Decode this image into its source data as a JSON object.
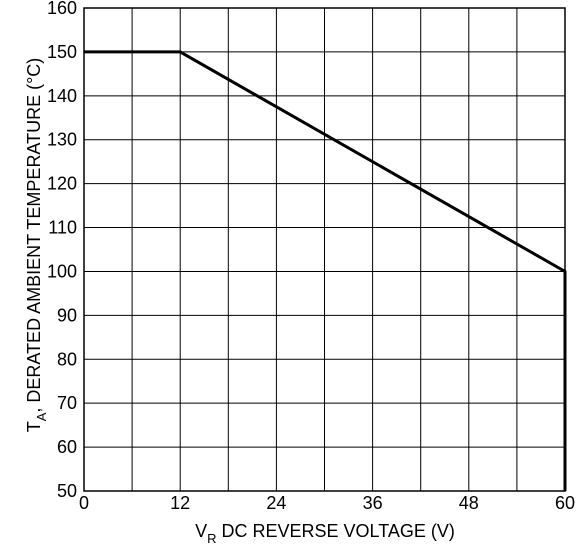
{
  "chart_data": {
    "type": "line",
    "title": "",
    "xlabel": {
      "prefix": "V",
      "subscript": "R",
      "text": " DC REVERSE VOLTAGE (V)"
    },
    "ylabel": {
      "prefix": "T",
      "subscript": "A",
      "text": ", DERATED AMBIENT TEMPERATURE (°C)"
    },
    "xlim": [
      0,
      60
    ],
    "ylim": [
      50,
      160
    ],
    "xticks": [
      0,
      12,
      24,
      36,
      48,
      60
    ],
    "yticks": [
      50,
      60,
      70,
      80,
      90,
      100,
      110,
      120,
      130,
      140,
      150,
      160
    ],
    "x_grid_step": 6,
    "y_grid_step": 10,
    "grid": true,
    "series": [
      {
        "x": [
          0,
          12,
          60,
          60
        ],
        "y": [
          150,
          150,
          100,
          50
        ],
        "color": "#000000"
      }
    ]
  }
}
